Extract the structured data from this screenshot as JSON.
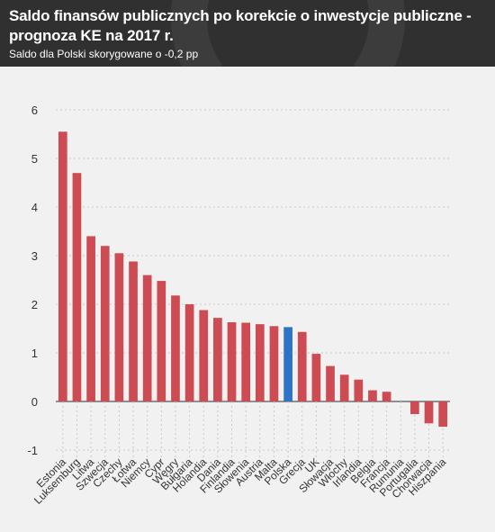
{
  "header": {
    "title": "Saldo finansów publicznych po korekcie o inwestycje publiczne - prognoza KE na 2017 r.",
    "subtitle": "Saldo dla Polski skorygowane o -0,2 pp"
  },
  "colors": {
    "bar": "#cd4c53",
    "highlight": "#2f73c9",
    "header_bg": "#303030",
    "plot_bg": "#f1f1f1"
  },
  "chart_data": {
    "type": "bar",
    "title": "Saldo finansów publicznych po korekcie o inwestycje publiczne - prognoza KE na 2017 r.",
    "subtitle": "Saldo dla Polski skorygowane o -0,2 pp",
    "xlabel": "",
    "ylabel": "",
    "ylim": [
      -1,
      6
    ],
    "yticks": [
      -1,
      0,
      1,
      2,
      3,
      4,
      5,
      6
    ],
    "grid": true,
    "highlight_category": "Polska",
    "categories": [
      "Estonia",
      "Luksemburg",
      "Litwa",
      "Szwecja",
      "Czechy",
      "Łotwa",
      "Niemcy",
      "Cypr",
      "Węgry",
      "Bułgaria",
      "Holandia",
      "Dania",
      "Finlandia",
      "Słowenia",
      "Austria",
      "Malta",
      "Polska",
      "Grecja",
      "UK",
      "Słowacja",
      "Włochy",
      "Irlandia",
      "Belgia",
      "Francja",
      "Rumunia",
      "Portugalia",
      "Chorwacja",
      "Hiszpania"
    ],
    "values": [
      5.55,
      4.7,
      3.4,
      3.2,
      3.05,
      2.88,
      2.6,
      2.48,
      2.18,
      2.0,
      1.88,
      1.72,
      1.63,
      1.62,
      1.59,
      1.55,
      1.53,
      1.43,
      0.98,
      0.73,
      0.55,
      0.45,
      0.23,
      0.2,
      0.0,
      -0.26,
      -0.45,
      -0.52
    ]
  }
}
